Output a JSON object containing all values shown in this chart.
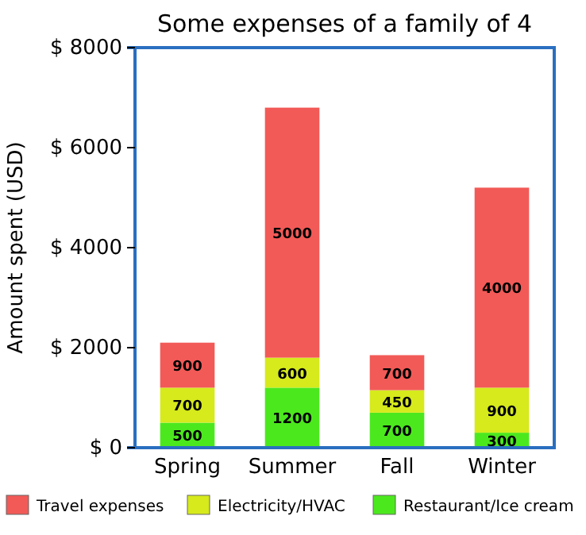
{
  "chart_data": {
    "type": "bar",
    "title": "Some expenses of a family of 4",
    "ylabel": "Amount spent (USD)",
    "categories": [
      "Spring",
      "Summer",
      "Fall",
      "Winter"
    ],
    "stacked": true,
    "data_labels": true,
    "legend": "bottom",
    "grid": false,
    "series": [
      {
        "name": "Restaurant/Ice cream",
        "color": "#4ce81e",
        "values": [
          500,
          1200,
          700,
          300
        ]
      },
      {
        "name": "Electricity/HVAC",
        "color": "#d6ea1c",
        "values": [
          700,
          600,
          450,
          900
        ]
      },
      {
        "name": "Travel expenses",
        "color": "#f25a57",
        "values": [
          900,
          5000,
          700,
          4000
        ]
      }
    ],
    "ylim": [
      0,
      8000
    ],
    "yticks": [
      {
        "value": 0,
        "label": "$ 0"
      },
      {
        "value": 2000,
        "label": "$ 2000"
      },
      {
        "value": 4000,
        "label": "$ 4000"
      },
      {
        "value": 6000,
        "label": "$ 6000"
      },
      {
        "value": 8000,
        "label": "$ 8000"
      }
    ]
  }
}
